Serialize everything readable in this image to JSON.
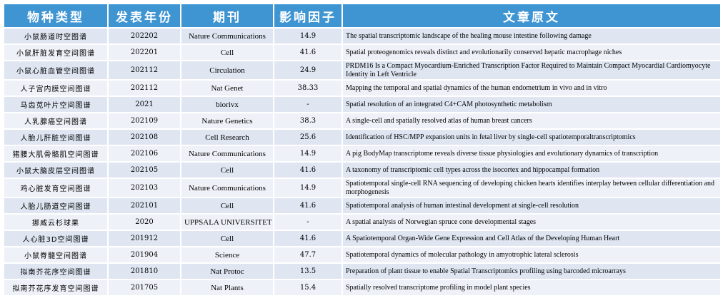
{
  "headers": [
    "物种类型",
    "发表年份",
    "期刊",
    "影响因子",
    "文章原文"
  ],
  "rows": [
    {
      "species": "小鼠肠道时空图谱",
      "year": "202202",
      "journal": "Nature Communications",
      "impact": "14.9",
      "article": "The spatial transcriptomic landscape of the healing mouse intestine following damage"
    },
    {
      "species": "小鼠肝脏发育空间图谱",
      "year": "202201",
      "journal": "Cell",
      "impact": "41.6",
      "article": "Spatial proteogenomics reveals distinct and evolutionarily conserved hepatic macrophage niches"
    },
    {
      "species": "小鼠心脏血管空间图谱",
      "year": "202112",
      "journal": "Circulation",
      "impact": "24.9",
      "article": "PRDM16 Is a Compact Myocardium-Enriched Transcription Factor Required to Maintain Compact Myocardial Cardiomyocyte Identity in Left Ventricle"
    },
    {
      "species": "人子宫内膜空间图谱",
      "year": "202112",
      "journal": "Nat Genet",
      "impact": "38.33",
      "article": "Mapping the temporal and spatial dynamics of the human endometrium in vivo and in vitro"
    },
    {
      "species": "马齿苋叶片空间图谱",
      "year": "2021",
      "journal": "biorivx",
      "impact": "-",
      "article": "Spatial resolution of an integrated C4+CAM photosynthetic metabolism"
    },
    {
      "species": "人乳腺癌空间图谱",
      "year": "202109",
      "journal": "Nature Genetics",
      "impact": "38.3",
      "article": "A single-cell and spatially resolved atlas of human breast cancers"
    },
    {
      "species": "人胎儿肝脏空间图谱",
      "year": "202108",
      "journal": "Cell Research",
      "impact": "25.6",
      "article": "Identification of HSC/MPP expansion units in fetal liver by single-cell spatiotemporaltranscriptomics"
    },
    {
      "species": "猪腰大肌骨骼肌空间图谱",
      "year": "202106",
      "journal": "Nature Communications",
      "impact": "14.9",
      "article": "A pig BodyMap transcriptome reveals diverse tissue physiologies and evolutionary dynamics of transcription"
    },
    {
      "species": "小鼠大脑皮层空间图谱",
      "year": "202105",
      "journal": "Cell",
      "impact": "41.6",
      "article": "A taxonomy of transcriptomic cell types across the isocortex and hippocampal formation"
    },
    {
      "species": "鸡心脏发育空间图谱",
      "year": "202103",
      "journal": "Nature Communications",
      "impact": "14.9",
      "article": "Spatiotemporal single-cell RNA sequencing of developing chicken hearts identifies interplay between cellular differentiation and morphogenesis"
    },
    {
      "species": "人胎儿肠道空间图谱",
      "year": "202101",
      "journal": "Cell",
      "impact": "41.6",
      "article": "Spatiotemporal analysis of human intestinal development at single-cell resolution"
    },
    {
      "species": "挪威云杉球果",
      "year": "2020",
      "journal": "UPPSALA UNIVERSITET",
      "impact": "-",
      "article": "A spatial analysis of Norwegian spruce cone developmental stages"
    },
    {
      "species": "人心脏3D空间图谱",
      "year": "201912",
      "journal": "Cell",
      "impact": "41.6",
      "article": "A Spatiotemporal Organ-Wide Gene Expression and Cell Atlas of the Developing Human Heart"
    },
    {
      "species": "小鼠脊髓空间图谱",
      "year": "201904",
      "journal": "Science",
      "impact": "47.7",
      "article": "Spatiotemporal dynamics of molecular pathology in amyotrophic lateral sclerosis"
    },
    {
      "species": "拟南芥花序空间图谱",
      "year": "201810",
      "journal": "Nat Protoc",
      "impact": "13.5",
      "article": "Preparation of plant tissue to enable Spatial Transcriptomics profiling using barcoded microarrays"
    },
    {
      "species": "拟南芥花序发育空间图谱",
      "year": "201705",
      "journal": "Nat Plants",
      "impact": "15.4",
      "article": "Spatially resolved transcriptome profiling in model plant species"
    }
  ],
  "colors": {
    "header_bg": "#3f94d2",
    "row_odd": "#dfe6f2",
    "row_even": "#eef2f8"
  }
}
